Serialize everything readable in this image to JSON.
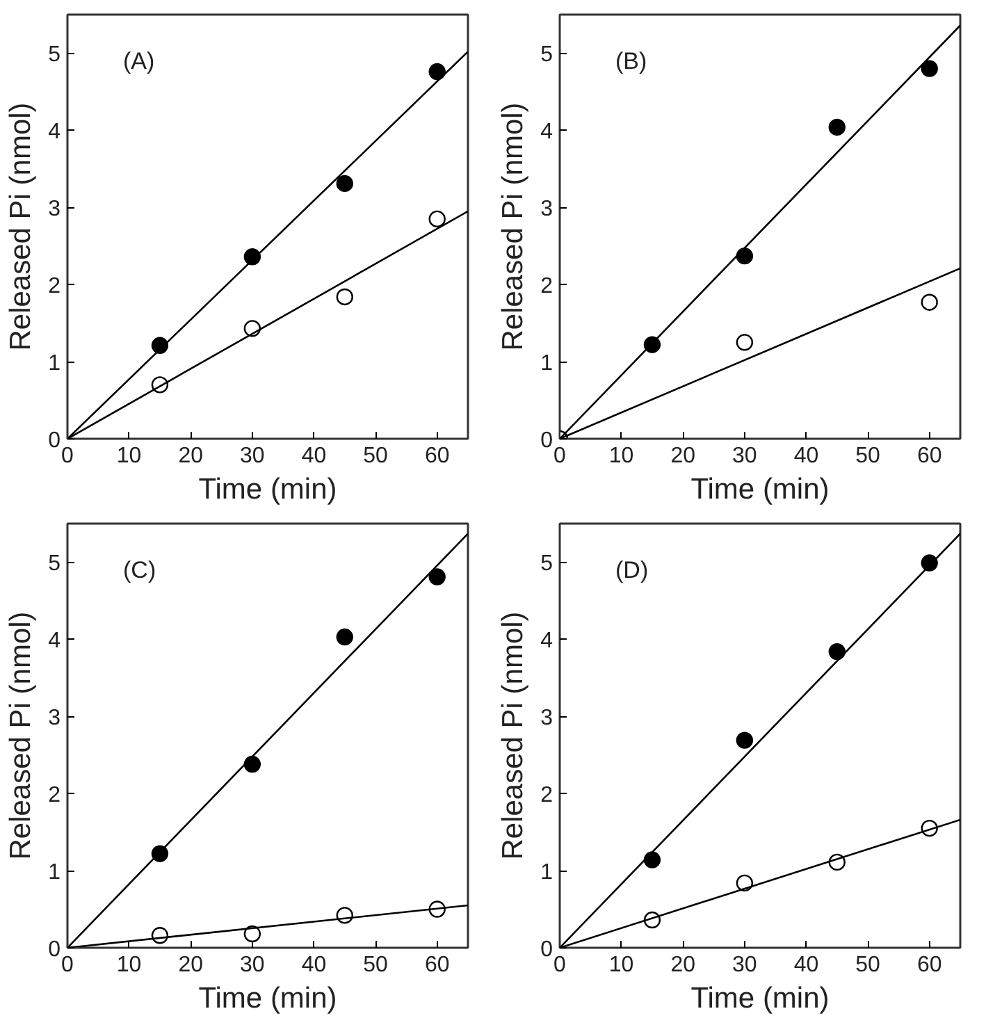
{
  "chart_data": [
    {
      "type": "scatter",
      "xlabel": "Time (min)",
      "ylabel": "Released Pi (nmol)",
      "annotations": [
        "(A)"
      ],
      "xlim": [
        0,
        65
      ],
      "ylim": [
        0,
        5.5
      ],
      "xticks": [
        0,
        10,
        20,
        30,
        40,
        50,
        60
      ],
      "yticks": [
        0,
        1,
        2,
        3,
        4,
        5
      ],
      "grid": false,
      "marker": "circle",
      "series": [
        {
          "color": "#000000",
          "x": [
            15,
            30,
            45,
            60
          ],
          "values": [
            1.21,
            2.36,
            3.31,
            4.76
          ]
        },
        {
          "color": "#ffffff",
          "x": [
            15,
            30,
            45,
            60
          ],
          "values": [
            0.7,
            1.43,
            1.84,
            2.85
          ]
        },
        {
          "type": "line",
          "marker": "none",
          "line_style": "solid",
          "color": "#000000",
          "x": [
            0,
            65
          ],
          "values": [
            0,
            5.02
          ]
        },
        {
          "type": "line",
          "marker": "none",
          "line_style": "solid",
          "color": "#000000",
          "x": [
            0,
            65
          ],
          "values": [
            0,
            2.95
          ]
        }
      ]
    },
    {
      "type": "scatter",
      "xlabel": "Time (min)",
      "ylabel": "Released Pi (nmol)",
      "annotations": [
        "(B)"
      ],
      "xlim": [
        0,
        65
      ],
      "ylim": [
        0,
        5.5
      ],
      "xticks": [
        0,
        10,
        20,
        30,
        40,
        50,
        60
      ],
      "yticks": [
        0,
        1,
        2,
        3,
        4,
        5
      ],
      "grid": false,
      "marker": "circle",
      "series": [
        {
          "color": "#000000",
          "x": [
            15,
            30,
            45,
            60
          ],
          "values": [
            1.22,
            2.37,
            4.04,
            4.8
          ]
        },
        {
          "color": "#ffffff",
          "x": [
            0,
            30,
            60
          ],
          "values": [
            0,
            1.25,
            1.77
          ]
        },
        {
          "type": "line",
          "marker": "none",
          "line_style": "solid",
          "color": "#000000",
          "x": [
            0,
            65
          ],
          "values": [
            0,
            5.36
          ]
        },
        {
          "type": "line",
          "marker": "none",
          "line_style": "solid",
          "color": "#000000",
          "x": [
            0,
            65
          ],
          "values": [
            0,
            2.21
          ]
        }
      ]
    },
    {
      "type": "scatter",
      "xlabel": "Time (min)",
      "ylabel": "Released Pi (nmol)",
      "annotations": [
        "(C)"
      ],
      "xlim": [
        0,
        65
      ],
      "ylim": [
        0,
        5.5
      ],
      "xticks": [
        0,
        10,
        20,
        30,
        40,
        50,
        60
      ],
      "yticks": [
        0,
        1,
        2,
        3,
        4,
        5
      ],
      "grid": false,
      "marker": "circle",
      "series": [
        {
          "color": "#000000",
          "x": [
            15,
            30,
            45,
            60
          ],
          "values": [
            1.22,
            2.38,
            4.03,
            4.81
          ]
        },
        {
          "color": "#ffffff",
          "x": [
            15,
            30,
            45,
            60
          ],
          "values": [
            0.16,
            0.18,
            0.42,
            0.5
          ]
        },
        {
          "type": "line",
          "marker": "none",
          "line_style": "solid",
          "color": "#000000",
          "x": [
            0,
            65
          ],
          "values": [
            0,
            5.37
          ]
        },
        {
          "type": "line",
          "marker": "none",
          "line_style": "solid",
          "color": "#000000",
          "x": [
            0,
            65
          ],
          "values": [
            0,
            0.55
          ]
        }
      ]
    },
    {
      "type": "scatter",
      "xlabel": "Time (min)",
      "ylabel": "Released Pi (nmol)",
      "annotations": [
        "(D)"
      ],
      "xlim": [
        0,
        65
      ],
      "ylim": [
        0,
        5.5
      ],
      "xticks": [
        0,
        10,
        20,
        30,
        40,
        50,
        60
      ],
      "yticks": [
        0,
        1,
        2,
        3,
        4,
        5
      ],
      "grid": false,
      "marker": "circle",
      "series": [
        {
          "color": "#000000",
          "x": [
            15,
            30,
            45,
            60
          ],
          "values": [
            1.14,
            2.69,
            3.84,
            4.99
          ]
        },
        {
          "color": "#ffffff",
          "x": [
            15,
            30,
            45,
            60
          ],
          "values": [
            0.36,
            0.84,
            1.11,
            1.55
          ]
        },
        {
          "type": "line",
          "marker": "none",
          "line_style": "solid",
          "color": "#000000",
          "x": [
            0,
            65
          ],
          "values": [
            0,
            5.37
          ]
        },
        {
          "type": "line",
          "marker": "none",
          "line_style": "solid",
          "color": "#000000",
          "x": [
            0,
            65
          ],
          "values": [
            0,
            1.66
          ]
        }
      ]
    }
  ]
}
